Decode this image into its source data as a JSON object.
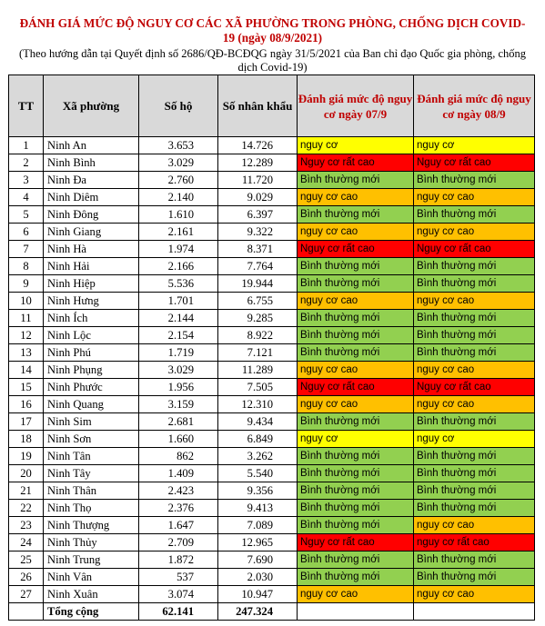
{
  "title": "ĐÁNH GIÁ MỨC ĐỘ NGUY CƠ CÁC XÃ PHƯỜNG TRONG PHÒNG, CHỐNG DỊCH COVID-19 (ngày 08/9/2021)",
  "note": "(Theo hướng dẫn tại Quyết định số 2686/QĐ-BCĐQG ngày 31/5/2021 của Ban chỉ đạo Quốc gia phòng, chống dịch Covid-19)",
  "headers": {
    "tt": "TT",
    "commune": "Xã phường",
    "households": "Số hộ",
    "people": "Số nhân khẩu",
    "risk_0709": "Đánh giá mức độ nguy cơ ngày 07/9",
    "risk_0809": "Đánh giá mức độ nguy cơ ngày 08/9"
  },
  "risk_colors": {
    "nguy cơ": "#ffff00",
    "Nguy cơ rất cao": "#ff0000",
    "Bình thường mới": "#92d050",
    "nguy cơ cao": "#ffc000"
  },
  "rows": [
    {
      "tt": "1",
      "commune": "Ninh An",
      "households": "3.653",
      "people": "14.726",
      "risk_0709": "nguy cơ",
      "risk_0809": "nguy cơ"
    },
    {
      "tt": "2",
      "commune": "Ninh Bình",
      "households": "3.029",
      "people": "12.289",
      "risk_0709": "Nguy cơ rất cao",
      "risk_0809": "Nguy cơ rất cao"
    },
    {
      "tt": "3",
      "commune": "Ninh Đa",
      "households": "2.760",
      "people": "11.720",
      "risk_0709": "Bình thường mới",
      "risk_0809": "Bình thường mới"
    },
    {
      "tt": "4",
      "commune": "Ninh Diêm",
      "households": "2.140",
      "people": "9.029",
      "risk_0709": "nguy cơ cao",
      "risk_0809": "nguy cơ cao"
    },
    {
      "tt": "5",
      "commune": "Ninh Đông",
      "households": "1.610",
      "people": "6.397",
      "risk_0709": "Bình thường mới",
      "risk_0809": "Bình thường mới"
    },
    {
      "tt": "6",
      "commune": "Ninh Giang",
      "households": "2.161",
      "people": "9.322",
      "risk_0709": "nguy cơ cao",
      "risk_0809": "nguy cơ cao"
    },
    {
      "tt": "7",
      "commune": "Ninh Hà",
      "households": "1.974",
      "people": "8.371",
      "risk_0709": "Nguy cơ rất cao",
      "risk_0809": "Nguy cơ rất cao"
    },
    {
      "tt": "8",
      "commune": "Ninh Hải",
      "households": "2.166",
      "people": "7.764",
      "risk_0709": "Bình thường mới",
      "risk_0809": "Bình thường mới"
    },
    {
      "tt": "9",
      "commune": "Ninh Hiệp",
      "households": "5.536",
      "people": "19.944",
      "risk_0709": "Bình thường mới",
      "risk_0809": "Bình thường mới"
    },
    {
      "tt": "10",
      "commune": "Ninh Hưng",
      "households": "1.701",
      "people": "6.755",
      "risk_0709": "nguy cơ cao",
      "risk_0809": "nguy cơ cao"
    },
    {
      "tt": "11",
      "commune": "Ninh Ích",
      "households": "2.144",
      "people": "9.285",
      "risk_0709": "Bình thường mới",
      "risk_0809": "Bình thường mới"
    },
    {
      "tt": "12",
      "commune": "Ninh Lộc",
      "households": "2.154",
      "people": "8.922",
      "risk_0709": "Bình thường mới",
      "risk_0809": "Bình thường mới"
    },
    {
      "tt": "13",
      "commune": "Ninh Phú",
      "households": "1.719",
      "people": "7.121",
      "risk_0709": "Bình thường mới",
      "risk_0809": "Bình thường mới"
    },
    {
      "tt": "14",
      "commune": "Ninh Phụng",
      "households": "3.029",
      "people": "11.289",
      "risk_0709": "nguy cơ cao",
      "risk_0809": "nguy cơ cao"
    },
    {
      "tt": "15",
      "commune": "Ninh Phước",
      "households": "1.956",
      "people": "7.505",
      "risk_0709": "Nguy cơ rất cao",
      "risk_0809": "Nguy cơ rất cao"
    },
    {
      "tt": "16",
      "commune": "Ninh Quang",
      "households": "3.159",
      "people": "12.310",
      "risk_0709": "nguy cơ cao",
      "risk_0809": "nguy cơ cao"
    },
    {
      "tt": "17",
      "commune": "Ninh Sim",
      "households": "2.681",
      "people": "9.434",
      "risk_0709": "Bình thường mới",
      "risk_0809": "Bình thường mới"
    },
    {
      "tt": "18",
      "commune": "Ninh Sơn",
      "households": "1.660",
      "people": "6.849",
      "risk_0709": "nguy cơ",
      "risk_0809": "nguy cơ"
    },
    {
      "tt": "19",
      "commune": "Ninh Tân",
      "households": "862",
      "people": "3.262",
      "risk_0709": "Bình thường mới",
      "risk_0809": "Bình thường mới"
    },
    {
      "tt": "20",
      "commune": "Ninh Tây",
      "households": "1.409",
      "people": "5.540",
      "risk_0709": "Bình thường mới",
      "risk_0809": "Bình thường mới"
    },
    {
      "tt": "21",
      "commune": "Ninh Thân",
      "households": "2.423",
      "people": "9.356",
      "risk_0709": "Bình thường mới",
      "risk_0809": "Bình thường mới"
    },
    {
      "tt": "22",
      "commune": "Ninh Thọ",
      "households": "2.376",
      "people": "9.413",
      "risk_0709": "Bình thường mới",
      "risk_0809": "Bình thường mới"
    },
    {
      "tt": "23",
      "commune": "Ninh Thượng",
      "households": "1.647",
      "people": "7.089",
      "risk_0709": "Bình thường mới",
      "risk_0809": "nguy cơ cao"
    },
    {
      "tt": "24",
      "commune": "Ninh Thủy",
      "households": "2.709",
      "people": "12.965",
      "risk_0709": "Nguy cơ rất cao",
      "risk_0809": "nguy cơ rất cao"
    },
    {
      "tt": "25",
      "commune": "Ninh Trung",
      "households": "1.872",
      "people": "7.690",
      "risk_0709": "Bình thường mới",
      "risk_0809": "Bình thường mới"
    },
    {
      "tt": "26",
      "commune": "Ninh Vân",
      "households": "537",
      "people": "2.030",
      "risk_0709": "Bình thường mới",
      "risk_0809": "Bình thường mới"
    },
    {
      "tt": "27",
      "commune": "Ninh Xuân",
      "households": "3.074",
      "people": "10.947",
      "risk_0709": "nguy cơ cao",
      "risk_0809": "nguy cơ cao"
    }
  ],
  "total": {
    "label": "Tổng cộng",
    "households": "62.141",
    "people": "247.324"
  }
}
